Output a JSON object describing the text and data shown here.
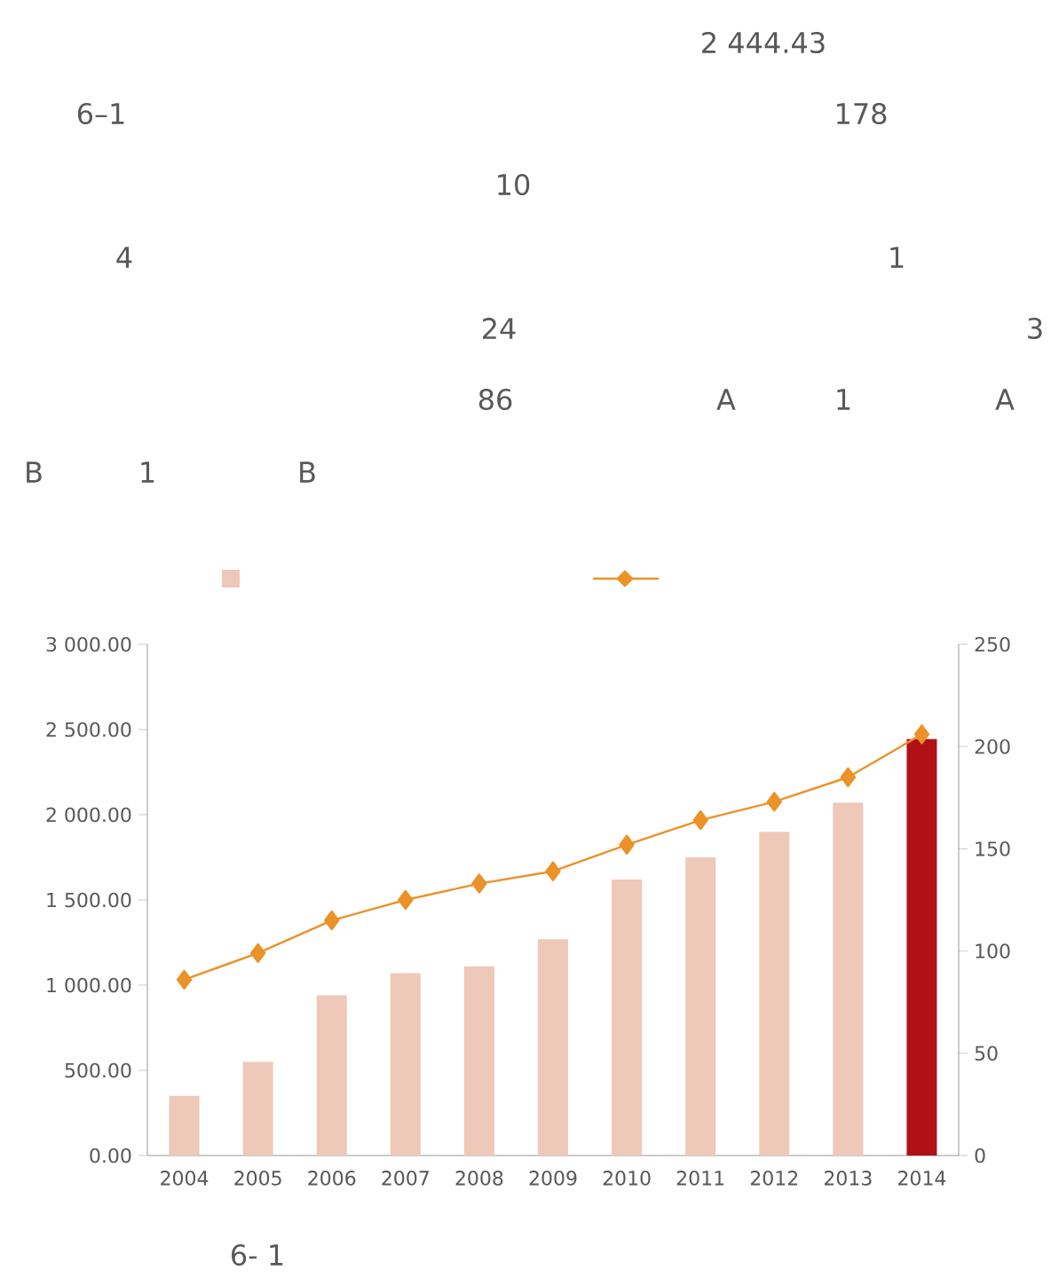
{
  "chart_data": {
    "type": "bar",
    "categories": [
      "2004",
      "2005",
      "2006",
      "2007",
      "2008",
      "2009",
      "2010",
      "2011",
      "2012",
      "2013",
      "2014"
    ],
    "series": [
      {
        "colors": [
          "#eec8b8",
          "#eec8b8",
          "#eec8b8",
          "#eec8b8",
          "#eec8b8",
          "#eec8b8",
          "#eec8b8",
          "#eec8b8",
          "#eec8b8",
          "#eec8b8",
          "#b01016"
        ],
        "values": [
          350,
          550,
          940,
          1070,
          1110,
          1270,
          1620,
          1750,
          1900,
          2070,
          2444.43
        ]
      },
      {
        "type": "line",
        "axis": "y2",
        "color": "#eb9228",
        "marker": "diamond",
        "line_style": "solid",
        "values": [
          86,
          99,
          115,
          125,
          133,
          139,
          152,
          164,
          173,
          185,
          206
        ]
      }
    ],
    "ylim": [
      0,
      3000
    ],
    "yticks": [
      {
        "value": 0,
        "label": "0.00"
      },
      {
        "value": 500,
        "label": "500.00"
      },
      {
        "value": 1000,
        "label": "1 000.00"
      },
      {
        "value": 1500,
        "label": "1 500.00"
      },
      {
        "value": 2000,
        "label": "2 000.00"
      },
      {
        "value": 2500,
        "label": "2 500.00"
      },
      {
        "value": 3000,
        "label": "3 000.00"
      }
    ],
    "y2lim": [
      0,
      250
    ],
    "y2ticks": [
      0,
      50,
      100,
      150,
      200,
      250
    ],
    "grid": false,
    "annotations": [
      "2 444.43",
      "6–1",
      "178",
      "10",
      "4",
      "1",
      "24",
      "3",
      "86",
      "A",
      "1",
      "A",
      "B",
      "1",
      "B",
      "6- 1"
    ]
  }
}
